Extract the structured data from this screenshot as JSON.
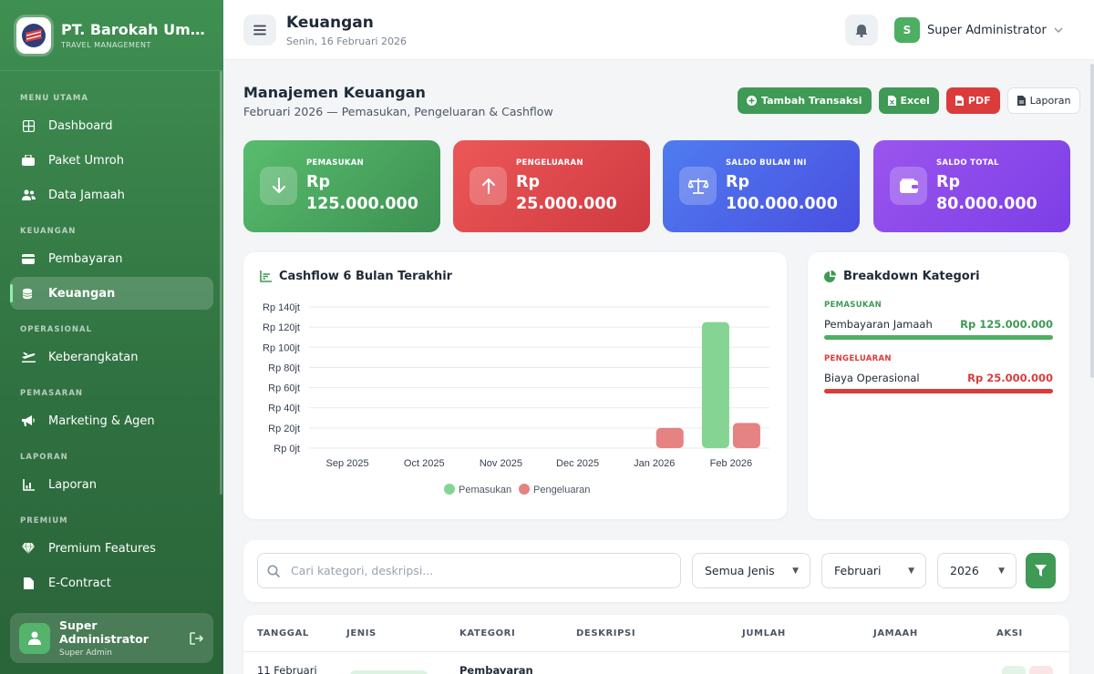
{
  "sidebar": {
    "brand_name": "PT. Barokah Umroh",
    "brand_sub": "TRAVEL MANAGEMENT",
    "sections": [
      {
        "label": "MENU UTAMA",
        "items": [
          {
            "label": "Dashboard",
            "icon": "grid-icon"
          },
          {
            "label": "Paket Umroh",
            "icon": "package-icon"
          },
          {
            "label": "Data Jamaah",
            "icon": "users-icon"
          }
        ]
      },
      {
        "label": "KEUANGAN",
        "items": [
          {
            "label": "Pembayaran",
            "icon": "credit-card-icon"
          },
          {
            "label": "Keuangan",
            "icon": "coins-icon",
            "active": true
          }
        ]
      },
      {
        "label": "OPERASIONAL",
        "items": [
          {
            "label": "Keberangkatan",
            "icon": "plane-icon"
          }
        ]
      },
      {
        "label": "PEMASARAN",
        "items": [
          {
            "label": "Marketing & Agen",
            "icon": "megaphone-icon"
          }
        ]
      },
      {
        "label": "LAPORAN",
        "items": [
          {
            "label": "Laporan",
            "icon": "chart-icon"
          }
        ]
      },
      {
        "label": "PREMIUM",
        "items": [
          {
            "label": "Premium Features",
            "icon": "gem-icon"
          },
          {
            "label": "E-Contract",
            "icon": "file-icon"
          }
        ]
      }
    ],
    "user": {
      "name": "Super Administrator",
      "role": "Super Admin"
    }
  },
  "topbar": {
    "title": "Keuangan",
    "date": "Senin, 16 Februari 2026",
    "user_initial": "S",
    "user_name": "Super Administrator"
  },
  "header": {
    "title": "Manajemen Keuangan",
    "subtitle": "Februari 2026 — Pemasukan, Pengeluaran & Cashflow",
    "buttons": {
      "add": "Tambah Transaksi",
      "excel": "Excel",
      "pdf": "PDF",
      "report": "Laporan"
    }
  },
  "stats": [
    {
      "label": "PEMASUKAN",
      "value": "Rp 125.000.000",
      "icon": "arrow-down-icon",
      "color": "#4caf62"
    },
    {
      "label": "PENGELUARAN",
      "value": "Rp 25.000.000",
      "icon": "arrow-up-icon",
      "color": "#e04848"
    },
    {
      "label": "SALDO BULAN INI",
      "value": "Rp 100.000.000",
      "icon": "scale-icon",
      "color": "#4f67ea"
    },
    {
      "label": "SALDO TOTAL",
      "value": "Rp 80.000.000",
      "icon": "wallet-icon",
      "color": "#8b4dea"
    }
  ],
  "cashflow": {
    "title": "Cashflow 6 Bulan Terakhir"
  },
  "chart_data": {
    "type": "bar",
    "title": "Cashflow 6 Bulan Terakhir",
    "categories": [
      "Sep 2025",
      "Oct 2025",
      "Nov 2025",
      "Dec 2025",
      "Jan 2026",
      "Feb 2026"
    ],
    "series": [
      {
        "name": "Pemasukan",
        "color": "#85d494",
        "values": [
          0,
          0,
          0,
          0,
          0,
          125
        ]
      },
      {
        "name": "Pengeluaran",
        "color": "#e58282",
        "values": [
          0,
          0,
          0,
          0,
          20,
          25
        ]
      }
    ],
    "yticks": [
      "Rp 0jt",
      "Rp 20jt",
      "Rp 40jt",
      "Rp 60jt",
      "Rp 80jt",
      "Rp 100jt",
      "Rp 120jt",
      "Rp 140jt"
    ],
    "ylim": [
      0,
      140
    ],
    "grid": true,
    "legend": "bottom"
  },
  "breakdown": {
    "title": "Breakdown Kategori",
    "income_label": "PEMASUKAN",
    "income_item": "Pembayaran Jamaah",
    "income_amount": "Rp 125.000.000",
    "expense_label": "PENGELUARAN",
    "expense_item": "Biaya Operasional",
    "expense_amount": "Rp 25.000.000",
    "income_color": "#4caf62",
    "expense_color": "#dc3b3b"
  },
  "filters": {
    "search_placeholder": "Cari kategori, deskripsi...",
    "type": "Semua Jenis",
    "month": "Februari",
    "year": "2026"
  },
  "table": {
    "headers": [
      "TANGGAL",
      "JENIS",
      "KATEGORI",
      "DESKRIPSI",
      "JUMLAH",
      "JAMAAH",
      "AKSI"
    ],
    "first_row": {
      "date": "11 Februari",
      "category": "Pembayaran"
    }
  }
}
